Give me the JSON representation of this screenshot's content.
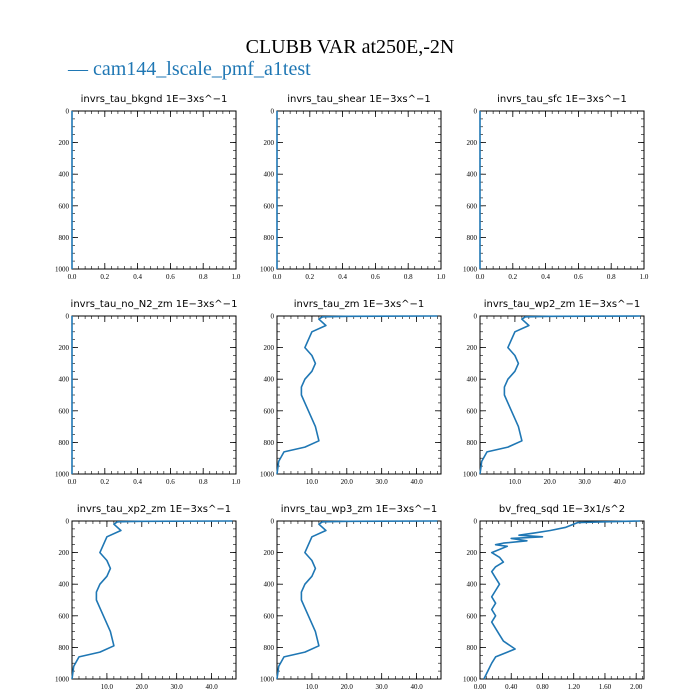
{
  "header": {
    "title": "CLUBB VAR at250E,-2N",
    "legend_label": "— cam144_lscale_pmf_a1test",
    "legend_color": "#1f77b4"
  },
  "chart_data": [
    {
      "type": "line",
      "title": "invrs_tau_bkgnd   1E−3xs^−1",
      "xlim": [
        0,
        1
      ],
      "ylim": [
        1000,
        0
      ],
      "xticks": [
        0,
        0.2,
        0.4,
        0.6,
        0.8,
        1.0
      ],
      "xticklabels": [
        "0.0",
        "0.2",
        "0.4",
        "0.6",
        "0.8",
        "1.0"
      ],
      "yticks": [
        0,
        200,
        400,
        600,
        800,
        1000
      ],
      "yticklabels": [
        "0",
        "200",
        "400",
        "600",
        "800",
        "1000"
      ],
      "series": [
        {
          "color": "#1f77b4",
          "x": [
            0,
            0
          ],
          "y": [
            0,
            1000
          ]
        }
      ]
    },
    {
      "type": "line",
      "title": "invrs_tau_shear   1E−3xs^−1",
      "xlim": [
        0,
        1
      ],
      "ylim": [
        1000,
        0
      ],
      "xticks": [
        0,
        0.2,
        0.4,
        0.6,
        0.8,
        1.0
      ],
      "xticklabels": [
        "0.0",
        "0.2",
        "0.4",
        "0.6",
        "0.8",
        "1.0"
      ],
      "yticks": [
        0,
        200,
        400,
        600,
        800,
        1000
      ],
      "yticklabels": [
        "0",
        "200",
        "400",
        "600",
        "800",
        "1000"
      ],
      "series": [
        {
          "color": "#1f77b4",
          "x": [
            0,
            0
          ],
          "y": [
            0,
            1000
          ]
        }
      ]
    },
    {
      "type": "line",
      "title": "invrs_tau_sfc   1E−3xs^−1",
      "xlim": [
        0,
        1
      ],
      "ylim": [
        1000,
        0
      ],
      "xticks": [
        0,
        0.2,
        0.4,
        0.6,
        0.8,
        1.0
      ],
      "xticklabels": [
        "0.0",
        "0.2",
        "0.4",
        "0.6",
        "0.8",
        "1.0"
      ],
      "yticks": [
        0,
        200,
        400,
        600,
        800,
        1000
      ],
      "yticklabels": [
        "0",
        "200",
        "400",
        "600",
        "800",
        "1000"
      ],
      "series": [
        {
          "color": "#1f77b4",
          "x": [
            0,
            0
          ],
          "y": [
            0,
            1000
          ]
        }
      ]
    },
    {
      "type": "line",
      "title": "invrs_tau_no_N2_zm   1E−3xs^−1",
      "xlim": [
        0,
        1
      ],
      "ylim": [
        1000,
        0
      ],
      "xticks": [
        0,
        0.2,
        0.4,
        0.6,
        0.8,
        1.0
      ],
      "xticklabels": [
        "0.0",
        "0.2",
        "0.4",
        "0.6",
        "0.8",
        "1.0"
      ],
      "yticks": [
        0,
        200,
        400,
        600,
        800,
        1000
      ],
      "yticklabels": [
        "0",
        "200",
        "400",
        "600",
        "800",
        "1000"
      ],
      "series": [
        {
          "color": "#1f77b4",
          "x": [
            0,
            0
          ],
          "y": [
            0,
            1000
          ]
        }
      ]
    },
    {
      "type": "line",
      "title": "invrs_tau_zm   1E−3xs^−1",
      "xlim": [
        0,
        47
      ],
      "ylim": [
        1000,
        0
      ],
      "xticks": [
        10,
        20,
        30,
        40
      ],
      "xticklabels": [
        "10.0",
        "20.0",
        "30.0",
        "40.0"
      ],
      "yticks": [
        0,
        200,
        400,
        600,
        800,
        1000
      ],
      "yticklabels": [
        "0",
        "200",
        "400",
        "600",
        "800",
        "1000"
      ],
      "series": [
        {
          "color": "#1f77b4",
          "x": [
            46,
            20,
            13,
            12,
            14,
            10,
            9,
            8,
            10,
            11,
            10,
            8,
            7,
            7,
            8,
            9,
            10,
            11,
            12,
            8,
            2,
            0.5,
            0
          ],
          "y": [
            0,
            2,
            5,
            20,
            60,
            100,
            150,
            200,
            250,
            300,
            350,
            400,
            450,
            500,
            550,
            600,
            650,
            700,
            790,
            830,
            860,
            920,
            1000
          ]
        }
      ]
    },
    {
      "type": "line",
      "title": "invrs_tau_wp2_zm   1E−3xs^−1",
      "xlim": [
        0,
        47
      ],
      "ylim": [
        1000,
        0
      ],
      "xticks": [
        10,
        20,
        30,
        40
      ],
      "xticklabels": [
        "10.0",
        "20.0",
        "30.0",
        "40.0"
      ],
      "yticks": [
        0,
        200,
        400,
        600,
        800,
        1000
      ],
      "yticklabels": [
        "0",
        "200",
        "400",
        "600",
        "800",
        "1000"
      ],
      "series": [
        {
          "color": "#1f77b4",
          "x": [
            46,
            20,
            13,
            12,
            14,
            10,
            9,
            8,
            10,
            11,
            10,
            8,
            7,
            7,
            8,
            9,
            10,
            11,
            12,
            8,
            2,
            0.5,
            0
          ],
          "y": [
            0,
            2,
            5,
            20,
            60,
            100,
            150,
            200,
            250,
            300,
            350,
            400,
            450,
            500,
            550,
            600,
            650,
            700,
            790,
            830,
            860,
            920,
            1000
          ]
        }
      ]
    },
    {
      "type": "line",
      "title": "invrs_tau_xp2_zm   1E−3xs^−1",
      "xlim": [
        0,
        47
      ],
      "ylim": [
        1000,
        0
      ],
      "xticks": [
        10,
        20,
        30,
        40
      ],
      "xticklabels": [
        "10.0",
        "20.0",
        "30.0",
        "40.0"
      ],
      "yticks": [
        0,
        200,
        400,
        600,
        800,
        1000
      ],
      "yticklabels": [
        "0",
        "200",
        "400",
        "600",
        "800",
        "1000"
      ],
      "series": [
        {
          "color": "#1f77b4",
          "x": [
            46,
            20,
            13,
            12,
            14,
            10,
            9,
            8,
            10,
            11,
            10,
            8,
            7,
            7,
            8,
            9,
            10,
            11,
            12,
            8,
            2,
            0.5,
            0
          ],
          "y": [
            0,
            2,
            5,
            20,
            60,
            100,
            150,
            200,
            250,
            300,
            350,
            400,
            450,
            500,
            550,
            600,
            650,
            700,
            790,
            830,
            860,
            920,
            1000
          ]
        }
      ]
    },
    {
      "type": "line",
      "title": "invrs_tau_wp3_zm   1E−3xs^−1",
      "xlim": [
        0,
        47
      ],
      "ylim": [
        1000,
        0
      ],
      "xticks": [
        10,
        20,
        30,
        40
      ],
      "xticklabels": [
        "10.0",
        "20.0",
        "30.0",
        "40.0"
      ],
      "yticks": [
        0,
        200,
        400,
        600,
        800,
        1000
      ],
      "yticklabels": [
        "0",
        "200",
        "400",
        "600",
        "800",
        "1000"
      ],
      "series": [
        {
          "color": "#1f77b4",
          "x": [
            46,
            20,
            13,
            12,
            14,
            10,
            9,
            8,
            10,
            11,
            10,
            8,
            7,
            7,
            8,
            9,
            10,
            11,
            12,
            8,
            2,
            0.5,
            0
          ],
          "y": [
            0,
            2,
            5,
            20,
            60,
            100,
            150,
            200,
            250,
            300,
            350,
            400,
            450,
            500,
            550,
            600,
            650,
            700,
            790,
            830,
            860,
            920,
            1000
          ]
        }
      ]
    },
    {
      "type": "line",
      "title": "bv_freq_sqd   1E−3x1/s^2",
      "xlim": [
        0,
        2.1
      ],
      "ylim": [
        1000,
        0
      ],
      "xticks": [
        0,
        0.4,
        0.8,
        1.2,
        1.6,
        2.0
      ],
      "xticklabels": [
        "0.00",
        "0.40",
        "0.80",
        "1.20",
        "1.60",
        "2.00"
      ],
      "yticks": [
        0,
        200,
        400,
        600,
        800,
        1000
      ],
      "yticklabels": [
        "0",
        "200",
        "400",
        "600",
        "800",
        "1000"
      ],
      "series": [
        {
          "color": "#1f77b4",
          "x": [
            2.05,
            1.6,
            1.25,
            1.1,
            0.9,
            0.7,
            0.5,
            0.8,
            0.4,
            0.6,
            0.3,
            0.2,
            0.35,
            0.15,
            0.25,
            0.3,
            0.2,
            0.15,
            0.2,
            0.25,
            0.2,
            0.15,
            0.2,
            0.15,
            0.2,
            0.15,
            0.2,
            0.25,
            0.3,
            0.45,
            0.2,
            0.15,
            0.1,
            0.05
          ],
          "y": [
            0,
            5,
            10,
            40,
            60,
            75,
            90,
            100,
            110,
            125,
            140,
            150,
            160,
            200,
            230,
            260,
            290,
            320,
            360,
            400,
            440,
            480,
            520,
            560,
            600,
            640,
            680,
            720,
            760,
            810,
            860,
            900,
            950,
            1000
          ]
        }
      ]
    }
  ]
}
